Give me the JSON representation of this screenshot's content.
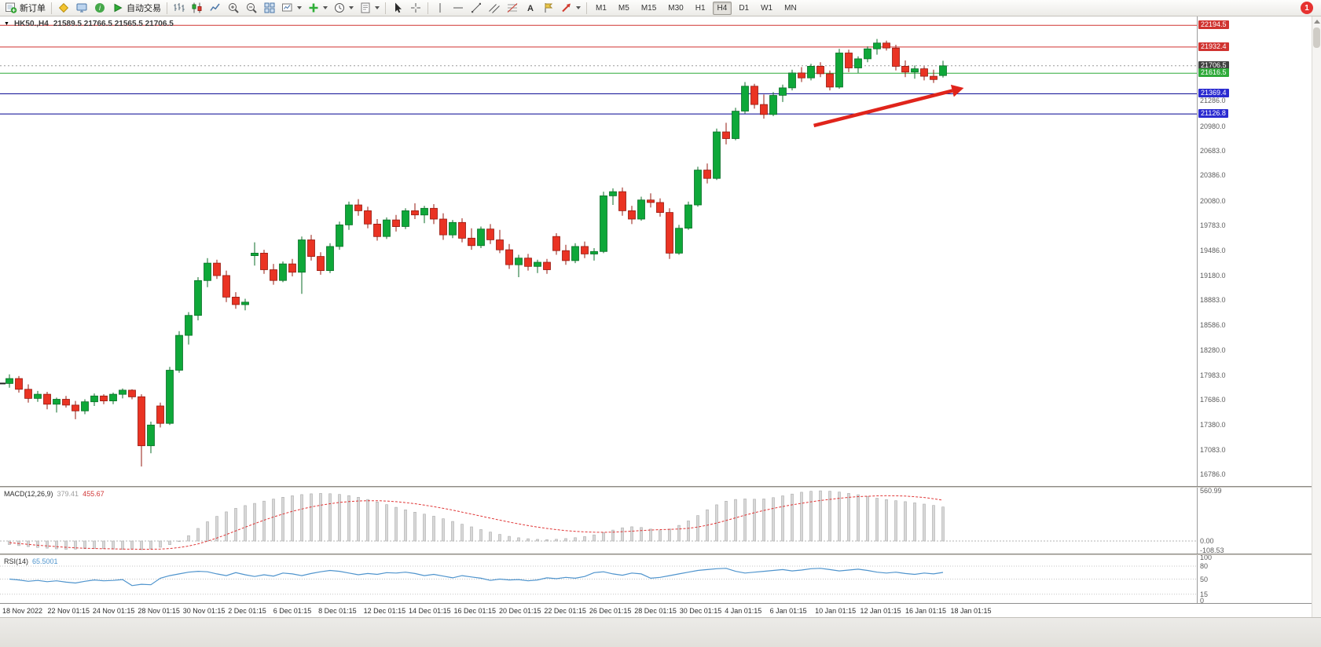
{
  "toolbar": {
    "new_order_label": "新订单",
    "autotrading_label": "自动交易",
    "timeframes": [
      "M1",
      "M5",
      "M15",
      "M30",
      "H1",
      "H4",
      "D1",
      "W1",
      "MN"
    ],
    "active_timeframe": "H4",
    "notification_badge": "1"
  },
  "chart": {
    "title_symbol": "HK50.,H4",
    "title_ohlc": "21589.5 21766.5 21565.5 21706.5",
    "up_color": "#0ea839",
    "down_color": "#ea3323",
    "y_axis": {
      "top_price": 22300,
      "bottom_price": 16645
    },
    "price_labels": [
      21286.0,
      20980.0,
      20683.0,
      20386.0,
      20080.0,
      19783.0,
      19486.0,
      19180.0,
      18883.0,
      18586.0,
      18280.0,
      17983.0,
      17686.0,
      17380.0,
      17083.0,
      16786.0
    ],
    "levels": [
      {
        "name": "resistance-line-1",
        "label": "22194.5",
        "price": 22194.5,
        "box_color": "#d03330",
        "line_color": "#d03330",
        "dotted": false
      },
      {
        "name": "resistance-line-2",
        "label": "21932.4",
        "price": 21932.4,
        "box_color": "#d03330",
        "line_color": "#d03330",
        "dotted": false
      },
      {
        "name": "current-price",
        "label": "21706.5",
        "price": 21706.5,
        "box_color": "#404040",
        "line_color": "#9a9a9a",
        "dotted": true
      },
      {
        "name": "support-line-green",
        "label": "21616.5",
        "price": 21616.5,
        "box_color": "#2faa3a",
        "line_color": "#2faa3a",
        "dotted": false
      },
      {
        "name": "support-line-blue-1",
        "label": "21369.4",
        "price": 21369.4,
        "box_color": "#2b2bd0",
        "line_color": "#000090",
        "dotted": false
      },
      {
        "name": "support-line-blue-2",
        "label": "21126.8",
        "price": 21126.8,
        "box_color": "#2b2bd0",
        "line_color": "#000090",
        "dotted": false
      }
    ],
    "arrow_annotation": {
      "from_bar": 85.3,
      "from_price": 20986,
      "to_bar": 101.2,
      "to_price": 21440,
      "color": "#e0241b"
    },
    "time_labels": [
      "18 Nov 2022",
      "22 Nov 01:15",
      "24 Nov 01:15",
      "28 Nov 01:15",
      "30 Nov 01:15",
      "2 Dec 01:15",
      "6 Dec 01:15",
      "8 Dec 01:15",
      "12 Dec 01:15",
      "14 Dec 01:15",
      "16 Dec 01:15",
      "20 Dec 01:15",
      "22 Dec 01:15",
      "26 Dec 01:15",
      "28 Dec 01:15",
      "30 Dec 01:15",
      "4 Jan 01:15",
      "6 Jan 01:15",
      "10 Jan 01:15",
      "12 Jan 01:15",
      "16 Jan 01:15",
      "18 Jan 01:15"
    ],
    "candles": [
      [
        17880,
        17990,
        17830,
        17940
      ],
      [
        17940,
        17970,
        17770,
        17810
      ],
      [
        17810,
        17870,
        17650,
        17700
      ],
      [
        17700,
        17790,
        17660,
        17750
      ],
      [
        17750,
        17780,
        17570,
        17630
      ],
      [
        17630,
        17710,
        17530,
        17690
      ],
      [
        17690,
        17730,
        17590,
        17620
      ],
      [
        17620,
        17670,
        17450,
        17550
      ],
      [
        17550,
        17690,
        17510,
        17660
      ],
      [
        17660,
        17760,
        17610,
        17730
      ],
      [
        17730,
        17750,
        17630,
        17670
      ],
      [
        17670,
        17770,
        17630,
        17750
      ],
      [
        17750,
        17820,
        17700,
        17800
      ],
      [
        17800,
        17810,
        17690,
        17720
      ],
      [
        17720,
        17750,
        16880,
        17130
      ],
      [
        17130,
        17420,
        17040,
        17380
      ],
      [
        17610,
        17650,
        17350,
        17400
      ],
      [
        17400,
        18080,
        17380,
        18040
      ],
      [
        18040,
        18510,
        18010,
        18460
      ],
      [
        18460,
        18740,
        18350,
        18700
      ],
      [
        18700,
        19160,
        18640,
        19120
      ],
      [
        19120,
        19390,
        19040,
        19330
      ],
      [
        19330,
        19370,
        19140,
        19180
      ],
      [
        19180,
        19240,
        18860,
        18920
      ],
      [
        18920,
        18980,
        18780,
        18830
      ],
      [
        18830,
        18900,
        18760,
        18860
      ],
      [
        19420,
        19580,
        19300,
        19450
      ],
      [
        19450,
        19490,
        19200,
        19250
      ],
      [
        19250,
        19320,
        19070,
        19120
      ],
      [
        19120,
        19350,
        19100,
        19320
      ],
      [
        19320,
        19380,
        19170,
        19220
      ],
      [
        19220,
        19650,
        18960,
        19610
      ],
      [
        19610,
        19670,
        19360,
        19410
      ],
      [
        19410,
        19460,
        19190,
        19240
      ],
      [
        19240,
        19570,
        19210,
        19530
      ],
      [
        19530,
        19830,
        19490,
        19790
      ],
      [
        19790,
        20070,
        19730,
        20030
      ],
      [
        20030,
        20100,
        19900,
        19960
      ],
      [
        19960,
        20010,
        19750,
        19800
      ],
      [
        19800,
        19860,
        19600,
        19650
      ],
      [
        19650,
        19880,
        19620,
        19850
      ],
      [
        19850,
        19910,
        19710,
        19770
      ],
      [
        19770,
        19990,
        19740,
        19960
      ],
      [
        19960,
        20050,
        19860,
        19910
      ],
      [
        19910,
        20020,
        19810,
        19990
      ],
      [
        19990,
        20040,
        19800,
        19860
      ],
      [
        19860,
        19930,
        19610,
        19670
      ],
      [
        19670,
        19850,
        19630,
        19820
      ],
      [
        19820,
        19870,
        19580,
        19630
      ],
      [
        19630,
        19750,
        19490,
        19540
      ],
      [
        19540,
        19770,
        19510,
        19740
      ],
      [
        19740,
        19800,
        19560,
        19610
      ],
      [
        19610,
        19730,
        19450,
        19490
      ],
      [
        19490,
        19560,
        19260,
        19310
      ],
      [
        19310,
        19430,
        19160,
        19390
      ],
      [
        19390,
        19440,
        19240,
        19290
      ],
      [
        19290,
        19370,
        19210,
        19340
      ],
      [
        19340,
        19380,
        19200,
        19250
      ],
      [
        19650,
        19690,
        19430,
        19480
      ],
      [
        19480,
        19550,
        19310,
        19360
      ],
      [
        19360,
        19570,
        19330,
        19530
      ],
      [
        19530,
        19590,
        19390,
        19440
      ],
      [
        19440,
        19510,
        19360,
        19470
      ],
      [
        19470,
        20190,
        19450,
        20140
      ],
      [
        20140,
        20230,
        20030,
        20190
      ],
      [
        20190,
        20240,
        19900,
        19960
      ],
      [
        19960,
        20020,
        19800,
        19860
      ],
      [
        19860,
        20130,
        19840,
        20090
      ],
      [
        20090,
        20170,
        20000,
        20060
      ],
      [
        20060,
        20110,
        19890,
        19940
      ],
      [
        19940,
        19990,
        19380,
        19450
      ],
      [
        19450,
        19790,
        19430,
        19750
      ],
      [
        19750,
        20070,
        19730,
        20030
      ],
      [
        20030,
        20490,
        20010,
        20450
      ],
      [
        20450,
        20530,
        20290,
        20350
      ],
      [
        20350,
        20950,
        20330,
        20910
      ],
      [
        20910,
        21020,
        20760,
        20830
      ],
      [
        20830,
        21200,
        20810,
        21160
      ],
      [
        21160,
        21510,
        21130,
        21460
      ],
      [
        21460,
        21490,
        21190,
        21240
      ],
      [
        21240,
        21360,
        21070,
        21120
      ],
      [
        21120,
        21390,
        21100,
        21350
      ],
      [
        21350,
        21480,
        21270,
        21440
      ],
      [
        21440,
        21660,
        21410,
        21620
      ],
      [
        21620,
        21690,
        21510,
        21560
      ],
      [
        21560,
        21730,
        21530,
        21700
      ],
      [
        21700,
        21750,
        21570,
        21610
      ],
      [
        21610,
        21650,
        21410,
        21450
      ],
      [
        21450,
        21910,
        21430,
        21860
      ],
      [
        21860,
        21900,
        21630,
        21680
      ],
      [
        21680,
        21820,
        21620,
        21790
      ],
      [
        21790,
        21940,
        21750,
        21910
      ],
      [
        21910,
        22030,
        21840,
        21980
      ],
      [
        21980,
        22010,
        21890,
        21920
      ],
      [
        21920,
        21960,
        21650,
        21700
      ],
      [
        21700,
        21770,
        21570,
        21630
      ],
      [
        21630,
        21710,
        21550,
        21670
      ],
      [
        21670,
        21700,
        21530,
        21580
      ],
      [
        21580,
        21660,
        21500,
        21540
      ],
      [
        21589.5,
        21766.5,
        21565.5,
        21706.5
      ]
    ]
  },
  "macd": {
    "label": "MACD(12,26,9)",
    "value_main": "379.41",
    "value_signal": "455.67",
    "axis": [
      {
        "label": "560.99",
        "value": 560.99
      },
      {
        "label": "0.00",
        "value": 0
      },
      {
        "label": "-108.53",
        "value": -108.53
      }
    ],
    "histogram": [
      -40,
      -52,
      -62,
      -72,
      -80,
      -88,
      -93,
      -90,
      -86,
      -82,
      -86,
      -90,
      -94,
      -90,
      -96,
      -88,
      -70,
      -40,
      0,
      60,
      140,
      215,
      275,
      325,
      365,
      395,
      420,
      445,
      468,
      488,
      505,
      518,
      527,
      531,
      528,
      520,
      507,
      488,
      464,
      436,
      406,
      376,
      348,
      322,
      300,
      277,
      248,
      218,
      188,
      158,
      128,
      100,
      74,
      52,
      36,
      25,
      18,
      15,
      19,
      27,
      37,
      49,
      68,
      93,
      122,
      147,
      159,
      151,
      133,
      117,
      134,
      174,
      224,
      284,
      349,
      404,
      444,
      464,
      470,
      466,
      470,
      484,
      504,
      524,
      544,
      555,
      560,
      556,
      546,
      531,
      516,
      498,
      478,
      462,
      450,
      439,
      426,
      412,
      397,
      379.4
    ],
    "signal": [
      -18,
      -28,
      -38,
      -47,
      -55,
      -63,
      -70,
      -76,
      -81,
      -84,
      -86,
      -88,
      -90,
      -91,
      -92,
      -92,
      -90,
      -84,
      -73,
      -56,
      -32,
      -2,
      33,
      72,
      113,
      154,
      194,
      232,
      268,
      301,
      331,
      357,
      380,
      400,
      416,
      430,
      440,
      447,
      450,
      450,
      446,
      439,
      429,
      416,
      401,
      384,
      365,
      345,
      323,
      301,
      278,
      255,
      233,
      211,
      191,
      172,
      155,
      140,
      127,
      116,
      108,
      102,
      98,
      97,
      99,
      104,
      110,
      117,
      123,
      127,
      130,
      134,
      142,
      156,
      176,
      201,
      229,
      259,
      288,
      316,
      341,
      364,
      385,
      404,
      421,
      437,
      452,
      465,
      477,
      487,
      495,
      500,
      504,
      506,
      505,
      501,
      494,
      486,
      472,
      455.7
    ]
  },
  "rsi": {
    "label": "RSI(14)",
    "value": "65.5001",
    "axis": [
      {
        "label": "100",
        "value": 100
      },
      {
        "label": "80",
        "value": 80
      },
      {
        "label": "50",
        "value": 50
      },
      {
        "label": "15",
        "value": 15
      },
      {
        "label": "0",
        "value": 0
      }
    ],
    "levels": [
      80,
      50,
      15
    ],
    "values": [
      50,
      48,
      45,
      47,
      44,
      46,
      43,
      41,
      45,
      48,
      46,
      47,
      49,
      35,
      38,
      37,
      52,
      58,
      62,
      66,
      68,
      67,
      62,
      58,
      65,
      60,
      56,
      60,
      57,
      64,
      62,
      58,
      63,
      67,
      70,
      68,
      64,
      60,
      63,
      61,
      65,
      64,
      66,
      63,
      58,
      61,
      57,
      53,
      58,
      55,
      52,
      47,
      50,
      48,
      49,
      46,
      48,
      53,
      51,
      54,
      52,
      56,
      65,
      67,
      62,
      59,
      64,
      62,
      52,
      54,
      58,
      62,
      66,
      70,
      72,
      74,
      75,
      68,
      64,
      66,
      68,
      70,
      72,
      69,
      71,
      74,
      75,
      72,
      69,
      71,
      73,
      70,
      66,
      64,
      66,
      63,
      61,
      64,
      62,
      65.5
    ]
  }
}
